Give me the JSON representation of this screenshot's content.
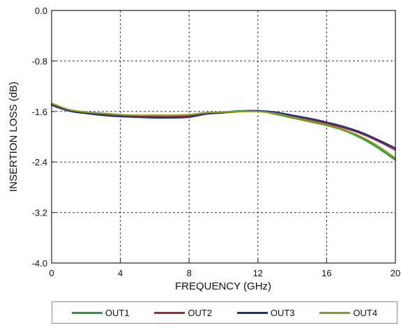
{
  "chart_data": {
    "type": "line",
    "title": "",
    "xlabel": "FREQUENCY (GHz)",
    "ylabel": "INSERTION LOSS (dB)",
    "xlim": [
      0,
      20
    ],
    "ylim": [
      -4.0,
      0.0
    ],
    "x_ticks": [
      "0",
      "4",
      "8",
      "12",
      "16",
      "20"
    ],
    "y_ticks": [
      "0.0",
      "-0.8",
      "-1.6",
      "-2.4",
      "-3.2",
      "-4.0"
    ],
    "x_tick_values": [
      0,
      4,
      8,
      12,
      16,
      20
    ],
    "y_tick_values": [
      0.0,
      -0.8,
      -1.6,
      -2.4,
      -3.2,
      -4.0
    ],
    "grid": true,
    "legend_position": "bottom",
    "series": [
      {
        "name": "OUT1",
        "color": "#1e9a3c",
        "x": [
          0,
          1,
          2,
          3,
          4,
          5,
          6,
          7,
          8,
          9,
          10,
          11,
          12,
          13,
          14,
          15,
          16,
          17,
          18,
          19,
          20
        ],
        "y": [
          -1.49,
          -1.58,
          -1.62,
          -1.64,
          -1.66,
          -1.67,
          -1.67,
          -1.67,
          -1.66,
          -1.63,
          -1.61,
          -1.59,
          -1.59,
          -1.64,
          -1.7,
          -1.76,
          -1.82,
          -1.9,
          -2.02,
          -2.18,
          -2.37
        ]
      },
      {
        "name": "OUT2",
        "color": "#a52a2a",
        "x": [
          0,
          1,
          2,
          3,
          4,
          5,
          6,
          7,
          8,
          9,
          10,
          11,
          12,
          13,
          14,
          15,
          16,
          17,
          18,
          19,
          20
        ],
        "y": [
          -1.48,
          -1.58,
          -1.62,
          -1.65,
          -1.67,
          -1.68,
          -1.68,
          -1.68,
          -1.67,
          -1.63,
          -1.61,
          -1.6,
          -1.59,
          -1.62,
          -1.67,
          -1.73,
          -1.79,
          -1.86,
          -1.95,
          -2.07,
          -2.21
        ]
      },
      {
        "name": "OUT3",
        "color": "#1f2f8a",
        "x": [
          0,
          1,
          2,
          3,
          4,
          5,
          6,
          7,
          8,
          9,
          10,
          11,
          12,
          13,
          14,
          15,
          16,
          17,
          18,
          19,
          20
        ],
        "y": [
          -1.5,
          -1.59,
          -1.63,
          -1.66,
          -1.68,
          -1.69,
          -1.7,
          -1.7,
          -1.69,
          -1.64,
          -1.62,
          -1.6,
          -1.59,
          -1.61,
          -1.66,
          -1.71,
          -1.77,
          -1.84,
          -1.93,
          -2.05,
          -2.18
        ]
      },
      {
        "name": "OUT4",
        "color": "#8c9a1c",
        "x": [
          0,
          1,
          2,
          3,
          4,
          5,
          6,
          7,
          8,
          9,
          10,
          11,
          12,
          13,
          14,
          15,
          16,
          17,
          18,
          19,
          20
        ],
        "y": [
          -1.47,
          -1.57,
          -1.61,
          -1.63,
          -1.65,
          -1.66,
          -1.66,
          -1.66,
          -1.65,
          -1.62,
          -1.61,
          -1.6,
          -1.6,
          -1.63,
          -1.69,
          -1.75,
          -1.81,
          -1.89,
          -2.0,
          -2.15,
          -2.34
        ]
      }
    ]
  }
}
